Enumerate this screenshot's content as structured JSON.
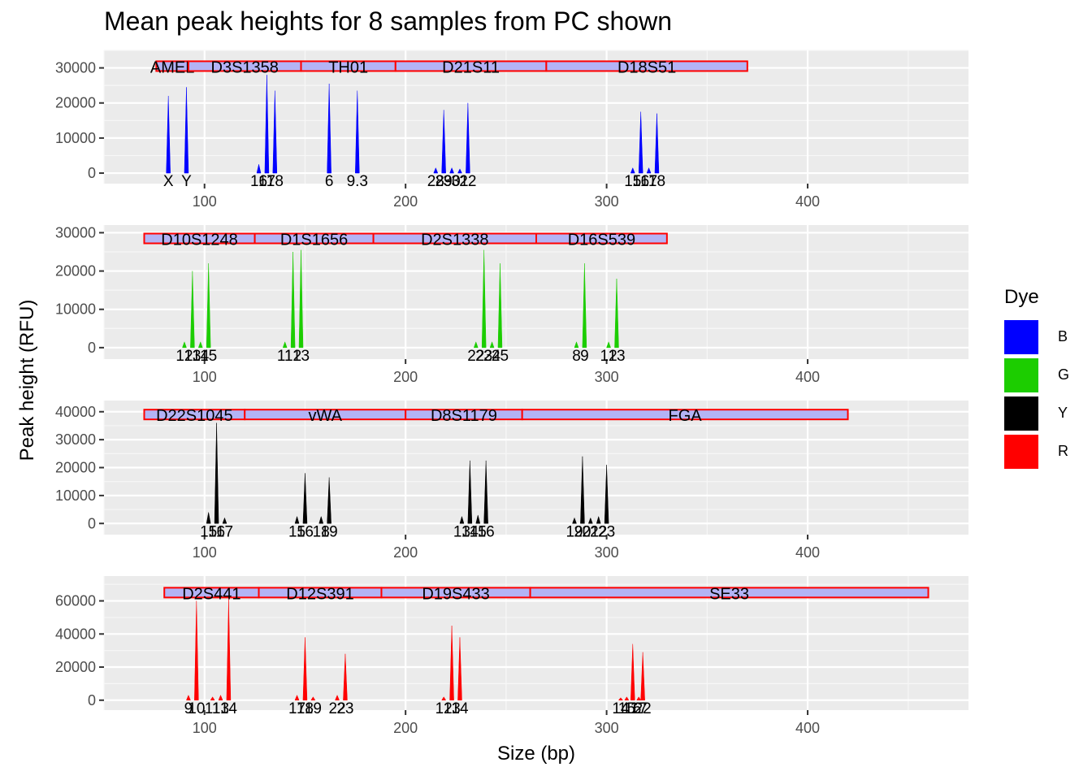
{
  "chart_data": {
    "type": "area",
    "title": "Mean peak heights for 8 samples from PC shown",
    "xlabel": "Size (bp)",
    "ylabel": "Peak height (RFU)",
    "xlim": [
      50,
      480
    ],
    "x_ticks": [
      100,
      200,
      300,
      400
    ],
    "legend": {
      "title": "Dye",
      "position": "right",
      "entries": [
        {
          "label": "B",
          "color": "#0000FF"
        },
        {
          "label": "G",
          "color": "#1CCD00"
        },
        {
          "label": "Y",
          "color": "#000000"
        },
        {
          "label": "R",
          "color": "#FF0000"
        }
      ]
    },
    "panels": [
      {
        "dye": "B",
        "color": "#0000FF",
        "ylim": [
          -3000,
          35000
        ],
        "y_ticks": [
          0,
          10000,
          20000,
          30000
        ],
        "y_tick_labels": [
          "0",
          "10000",
          "20000",
          "30000"
        ],
        "marker_y": 30500,
        "markers": [
          {
            "name": "AMEL",
            "start": 76,
            "end": 92
          },
          {
            "name": "D3S1358",
            "start": 92,
            "end": 148
          },
          {
            "name": "TH01",
            "start": 148,
            "end": 195
          },
          {
            "name": "D21S11",
            "start": 195,
            "end": 270
          },
          {
            "name": "D18S51",
            "start": 270,
            "end": 370
          }
        ],
        "alleles": [
          {
            "label": "X",
            "size": 82,
            "height": 22000
          },
          {
            "label": "Y",
            "size": 91,
            "height": 24500
          },
          {
            "label": "16",
            "size": 127,
            "height": 2500
          },
          {
            "label": "17",
            "size": 131,
            "height": 28000
          },
          {
            "label": "18",
            "size": 135,
            "height": 23500
          },
          {
            "label": "6",
            "size": 162,
            "height": 25500
          },
          {
            "label": "9.3",
            "size": 176,
            "height": 23500
          },
          {
            "label": "28",
            "size": 215,
            "height": 1500
          },
          {
            "label": "29",
            "size": 219,
            "height": 18000
          },
          {
            "label": "30",
            "size": 223,
            "height": 1500
          },
          {
            "label": "31",
            "size": 227,
            "height": 1200
          },
          {
            "label": "22",
            "size": 231,
            "height": 20000
          },
          {
            "label": "15",
            "size": 313,
            "height": 1500
          },
          {
            "label": "16",
            "size": 317,
            "height": 17500
          },
          {
            "label": "17",
            "size": 321,
            "height": 1500
          },
          {
            "label": "18",
            "size": 325,
            "height": 17000
          }
        ]
      },
      {
        "dye": "G",
        "color": "#1CCD00",
        "ylim": [
          -3000,
          32000
        ],
        "y_ticks": [
          0,
          10000,
          20000,
          30000
        ],
        "y_tick_labels": [
          "0",
          "10000",
          "20000",
          "30000"
        ],
        "marker_y": 28500,
        "markers": [
          {
            "name": "D10S1248",
            "start": 70,
            "end": 125
          },
          {
            "name": "D1S1656",
            "start": 125,
            "end": 184
          },
          {
            "name": "D2S1338",
            "start": 184,
            "end": 265
          },
          {
            "name": "D16S539",
            "start": 265,
            "end": 330
          }
        ],
        "alleles": [
          {
            "label": "12",
            "size": 90,
            "height": 1500
          },
          {
            "label": "13",
            "size": 94,
            "height": 20000
          },
          {
            "label": "14",
            "size": 98,
            "height": 1500
          },
          {
            "label": "15",
            "size": 102,
            "height": 22000
          },
          {
            "label": "11",
            "size": 140,
            "height": 1500
          },
          {
            "label": "12",
            "size": 144,
            "height": 25000
          },
          {
            "label": "13",
            "size": 148,
            "height": 25500
          },
          {
            "label": "22",
            "size": 235,
            "height": 1500
          },
          {
            "label": "23",
            "size": 239,
            "height": 25500
          },
          {
            "label": "24",
            "size": 243,
            "height": 1500
          },
          {
            "label": "25",
            "size": 247,
            "height": 22000
          },
          {
            "label": "8",
            "size": 285,
            "height": 1500
          },
          {
            "label": "9",
            "size": 289,
            "height": 22000
          },
          {
            "label": "12",
            "size": 301,
            "height": 1500
          },
          {
            "label": "13",
            "size": 305,
            "height": 18000
          }
        ]
      },
      {
        "dye": "Y",
        "color": "#000000",
        "ylim": [
          -4000,
          44000
        ],
        "y_ticks": [
          0,
          10000,
          20000,
          30000,
          40000
        ],
        "y_tick_labels": [
          "0",
          "10000",
          "20000",
          "30000",
          "40000"
        ],
        "marker_y": 39000,
        "markers": [
          {
            "name": "D22S1045",
            "start": 70,
            "end": 120
          },
          {
            "name": "vWA",
            "start": 120,
            "end": 200
          },
          {
            "name": "D8S1179",
            "start": 200,
            "end": 258
          },
          {
            "name": "FGA",
            "start": 258,
            "end": 420
          }
        ],
        "alleles": [
          {
            "label": "15",
            "size": 102,
            "height": 4000
          },
          {
            "label": "16",
            "size": 106,
            "height": 36000
          },
          {
            "label": "17",
            "size": 110,
            "height": 2000
          },
          {
            "label": "15",
            "size": 146,
            "height": 2500
          },
          {
            "label": "16",
            "size": 150,
            "height": 18000
          },
          {
            "label": "18",
            "size": 158,
            "height": 2500
          },
          {
            "label": "19",
            "size": 162,
            "height": 16500
          },
          {
            "label": "13",
            "size": 228,
            "height": 2500
          },
          {
            "label": "14",
            "size": 232,
            "height": 22500
          },
          {
            "label": "15",
            "size": 236,
            "height": 3000
          },
          {
            "label": "16",
            "size": 240,
            "height": 22500
          },
          {
            "label": "19",
            "size": 284,
            "height": 2000
          },
          {
            "label": "20",
            "size": 288,
            "height": 24000
          },
          {
            "label": "21",
            "size": 292,
            "height": 2000
          },
          {
            "label": "22",
            "size": 296,
            "height": 2500
          },
          {
            "label": "23",
            "size": 300,
            "height": 21000
          }
        ]
      },
      {
        "dye": "R",
        "color": "#FF0000",
        "ylim": [
          -6000,
          75000
        ],
        "y_ticks": [
          0,
          20000,
          40000,
          60000
        ],
        "y_tick_labels": [
          "0",
          "20000",
          "40000",
          "60000"
        ],
        "marker_y": 65000,
        "markers": [
          {
            "name": "D2S441",
            "start": 80,
            "end": 127
          },
          {
            "name": "D12S391",
            "start": 127,
            "end": 188
          },
          {
            "name": "D19S433",
            "start": 188,
            "end": 262
          },
          {
            "name": "SE33",
            "start": 262,
            "end": 460
          }
        ],
        "alleles": [
          {
            "label": "9",
            "size": 92,
            "height": 3000
          },
          {
            "label": "10",
            "size": 96,
            "height": 60000
          },
          {
            "label": "11",
            "size": 104,
            "height": 2000
          },
          {
            "label": "13",
            "size": 108,
            "height": 3000
          },
          {
            "label": "14",
            "size": 112,
            "height": 61000
          },
          {
            "label": "17",
            "size": 146,
            "height": 3000
          },
          {
            "label": "18",
            "size": 150,
            "height": 38000
          },
          {
            "label": "19",
            "size": 154,
            "height": 2000
          },
          {
            "label": "22",
            "size": 166,
            "height": 3000
          },
          {
            "label": "23",
            "size": 170,
            "height": 28000
          },
          {
            "label": "12",
            "size": 219,
            "height": 2000
          },
          {
            "label": "13",
            "size": 223,
            "height": 45000
          },
          {
            "label": "14",
            "size": 227,
            "height": 38000
          },
          {
            "label": "14",
            "size": 307,
            "height": 1500
          },
          {
            "label": "15",
            "size": 310,
            "height": 2000
          },
          {
            "label": "16",
            "size": 313,
            "height": 34000
          },
          {
            "label": "17",
            "size": 316,
            "height": 2000
          },
          {
            "label": "22",
            "size": 318,
            "height": 29000
          }
        ]
      }
    ]
  }
}
